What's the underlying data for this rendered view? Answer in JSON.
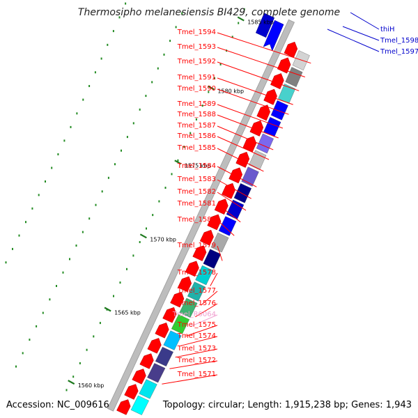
{
  "header": {
    "title": "Thermosipho melanesiensis BI429, complete genome"
  },
  "footer": {
    "accession": "Accession: NC_009616",
    "topology": "Topology: circular; Length: 1,915,238 bp; Genes: 1,943"
  },
  "colors": {
    "forward_cds": "#ff0000",
    "reverse_cds": "#0000ff",
    "rna": "#f0a0d0",
    "backbone": "#bdbdbd",
    "tick": "#228b22"
  },
  "kbp_marks": [
    {
      "label": "1585 kbp"
    },
    {
      "label": "1580 kbp"
    },
    {
      "label": "1575 kbp"
    },
    {
      "label": "1570 kbp"
    },
    {
      "label": "1565 kbp"
    },
    {
      "label": "1560 kbp"
    }
  ],
  "left_labels": [
    {
      "text": "Tmel_1594",
      "color": "#ff0000"
    },
    {
      "text": "Tmel_1593",
      "color": "#ff0000"
    },
    {
      "text": "Tmel_1592",
      "color": "#ff0000"
    },
    {
      "text": "Tmel_1591",
      "color": "#ff0000"
    },
    {
      "text": "Tmel_1590",
      "color": "#ff0000"
    },
    {
      "text": "Tmel_1589",
      "color": "#ff0000"
    },
    {
      "text": "Tmel_1588",
      "color": "#ff0000"
    },
    {
      "text": "Tmel_1587",
      "color": "#ff0000"
    },
    {
      "text": "Tmel_1586",
      "color": "#ff0000"
    },
    {
      "text": "Tmel_1585",
      "color": "#ff0000"
    },
    {
      "text": "Tmel_1584",
      "color": "#ff0000"
    },
    {
      "text": "Tmel_1583",
      "color": "#ff0000"
    },
    {
      "text": "Tmel_1582",
      "color": "#ff0000"
    },
    {
      "text": "Tmel_1581",
      "color": "#ff0000"
    },
    {
      "text": "Tmel_1580",
      "color": "#ff0000"
    },
    {
      "text": "Tmel_1579",
      "color": "#ff0000"
    },
    {
      "text": "Tmel_1578",
      "color": "#ff0000"
    },
    {
      "text": "Tmel_1577",
      "color": "#ff0000"
    },
    {
      "text": "Tmel_1576",
      "color": "#ff0000"
    },
    {
      "text": "Tmel_R0064",
      "color": "#f0a0d0"
    },
    {
      "text": "Tmel_1575",
      "color": "#ff0000"
    },
    {
      "text": "Tmel_1574",
      "color": "#ff0000"
    },
    {
      "text": "Tmel_1573",
      "color": "#ff0000"
    },
    {
      "text": "Tmel_1572",
      "color": "#ff0000"
    },
    {
      "text": "Tmel_1571",
      "color": "#ff0000"
    }
  ],
  "right_labels": [
    {
      "text": "thiH",
      "color": "#0000cc"
    },
    {
      "text": "Tmel_1598",
      "color": "#0000cc"
    },
    {
      "text": "Tmel_1597",
      "color": "#0000cc"
    }
  ],
  "cog_blocks": [
    {
      "color": "#00ffff"
    },
    {
      "color": "#00e5ee"
    },
    {
      "color": "#483d8b"
    },
    {
      "color": "#3a3a8a"
    },
    {
      "color": "#00bfff"
    },
    {
      "color": "#32cd32"
    },
    {
      "color": "#3cb371"
    },
    {
      "color": "#20b2aa"
    },
    {
      "color": "#00ced1"
    },
    {
      "color": "#000080"
    },
    {
      "color": "#a9a9a9"
    },
    {
      "color": "#0000ff"
    },
    {
      "color": "#0000cd"
    },
    {
      "color": "#00008b"
    },
    {
      "color": "#6a5acd"
    },
    {
      "color": "#c0c0c0"
    },
    {
      "color": "#7b68ee"
    },
    {
      "color": "#0000ff"
    },
    {
      "color": "#0000ff"
    },
    {
      "color": "#48d1cc"
    },
    {
      "color": "#808080"
    },
    {
      "color": "#d3d3d3"
    }
  ]
}
